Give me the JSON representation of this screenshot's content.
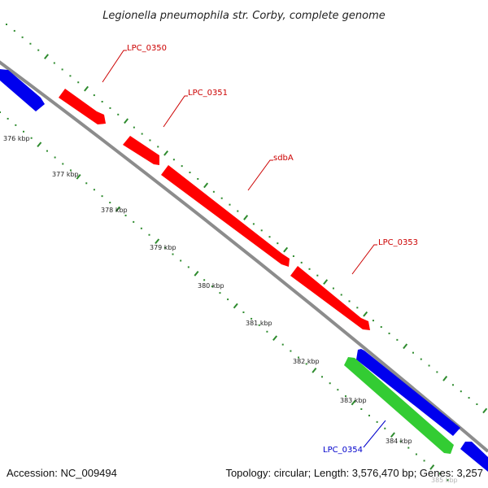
{
  "title": "Legionella pneumophila str. Corby, complete genome",
  "footer": {
    "accession": "Accession: NC_009494",
    "summary": "Topology: circular; Length: 3,576,470 bp; Genes: 3,257"
  },
  "colors": {
    "backbone": "#8c8c8c",
    "tick": "#2e8b2e",
    "forward_gene": "#ff0000",
    "reverse_gene": "#0000ee",
    "rna_gene": "#33cc33",
    "label_forward": "#cc0000",
    "label_reverse": "#0000cc"
  },
  "scale_labels": [
    "376 kbp",
    "377 kbp",
    "378 kbp",
    "379 kbp",
    "380 kbp",
    "381 kbp",
    "382 kbp",
    "383 kbp",
    "384 kbp",
    "385 kbp"
  ],
  "gene_labels": [
    {
      "id": "label-lpc-0350",
      "text": "LPC_0350",
      "strand": "forward"
    },
    {
      "id": "label-lpc-0351",
      "text": "LPC_0351",
      "strand": "forward"
    },
    {
      "id": "label-sdba",
      "text": "sdbA",
      "strand": "forward"
    },
    {
      "id": "label-lpc-0353",
      "text": "LPC_0353",
      "strand": "forward"
    },
    {
      "id": "label-lpc-0354",
      "text": "LPC_0354",
      "strand": "reverse"
    }
  ],
  "features": [
    {
      "name": "feature-reverse-left",
      "kind": "reverse_gene"
    },
    {
      "name": "feature-lpc-0350",
      "kind": "forward_gene"
    },
    {
      "name": "feature-lpc-0351",
      "kind": "forward_gene"
    },
    {
      "name": "feature-sdba",
      "kind": "forward_gene"
    },
    {
      "name": "feature-lpc-0353",
      "kind": "forward_gene"
    },
    {
      "name": "feature-reverse-right-1",
      "kind": "reverse_gene"
    },
    {
      "name": "feature-lpc-0354",
      "kind": "rna_gene"
    },
    {
      "name": "feature-reverse-right-2",
      "kind": "reverse_gene"
    }
  ]
}
